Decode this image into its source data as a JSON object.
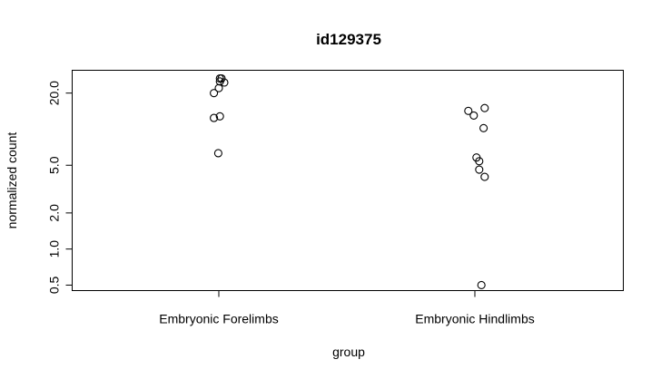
{
  "chart_data": {
    "type": "scatter",
    "title": "id129375",
    "xlabel": "group",
    "ylabel": "normalized count",
    "y_scale": "log",
    "ylim": [
      0.45,
      31
    ],
    "categories": [
      "Embryonic Forelimbs",
      "Embryonic Hindlimbs"
    ],
    "y_ticks": [
      0.5,
      1.0,
      2.0,
      5.0,
      20.0
    ],
    "y_tick_labels": [
      "0.5",
      "1.0",
      "2.0",
      "5.0",
      "20.0"
    ],
    "grid": false,
    "legend": "none",
    "series": [
      {
        "category": "Embryonic Forelimbs",
        "points": [
          {
            "jitter": 0.02,
            "y": 26.5
          },
          {
            "jitter": 0.05,
            "y": 26.5
          },
          {
            "jitter": 0.02,
            "y": 25.0
          },
          {
            "jitter": 0.1,
            "y": 24.5
          },
          {
            "jitter": 0.0,
            "y": 22.0
          },
          {
            "jitter": -0.09,
            "y": 20.0
          },
          {
            "jitter": 0.02,
            "y": 12.8
          },
          {
            "jitter": -0.09,
            "y": 12.4
          },
          {
            "jitter": -0.01,
            "y": 6.3
          }
        ]
      },
      {
        "category": "Embryonic Hindlimbs",
        "points": [
          {
            "jitter": 0.18,
            "y": 15.0
          },
          {
            "jitter": -0.12,
            "y": 14.2
          },
          {
            "jitter": -0.02,
            "y": 13.0
          },
          {
            "jitter": 0.16,
            "y": 10.2
          },
          {
            "jitter": 0.03,
            "y": 5.8
          },
          {
            "jitter": 0.08,
            "y": 5.4
          },
          {
            "jitter": 0.08,
            "y": 4.6
          },
          {
            "jitter": 0.18,
            "y": 4.0
          },
          {
            "jitter": 0.12,
            "y": 0.5
          }
        ]
      }
    ]
  }
}
